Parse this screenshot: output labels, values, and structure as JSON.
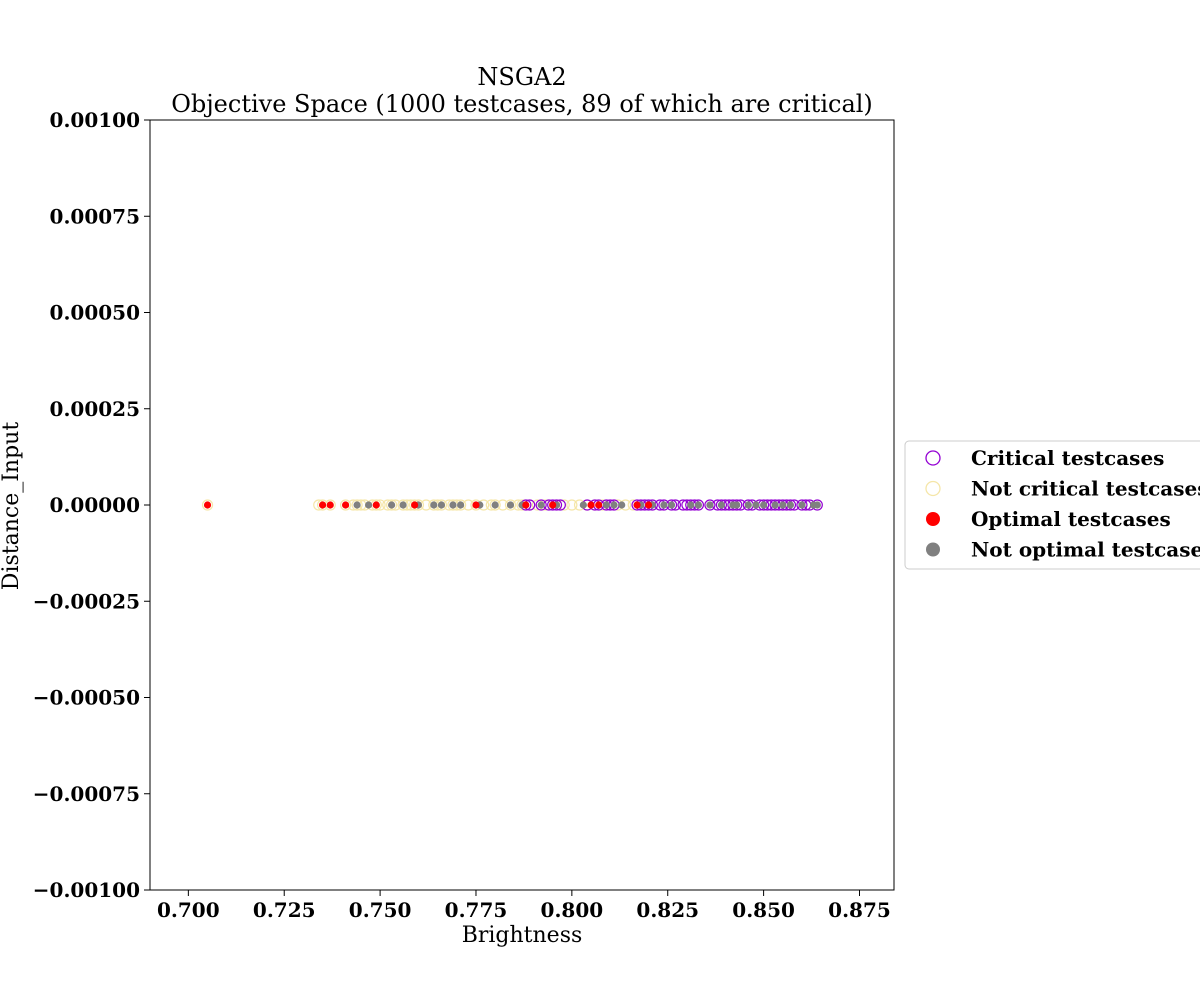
{
  "chart_data": {
    "type": "scatter",
    "title": "NSGA2",
    "subtitle": "Objective Space (1000 testcases, 89 of which are critical)",
    "xlabel": "Brightness",
    "ylabel": "Distance_Input",
    "xlim": [
      0.69,
      0.884
    ],
    "ylim": [
      -0.001,
      0.001
    ],
    "xticks": [
      "0.700",
      "0.725",
      "0.750",
      "0.775",
      "0.800",
      "0.825",
      "0.850",
      "0.875"
    ],
    "yticks": [
      "0.00100",
      "0.00075",
      "0.00050",
      "0.00025",
      "0.00000",
      "−0.00025",
      "−0.00050",
      "−0.00075",
      "−0.00100"
    ],
    "grid": false,
    "legend_position": "right",
    "colors": {
      "critical": "#9400d3",
      "not_critical": "#f5e6a8",
      "optimal": "#ff0000",
      "not_optimal": "#808080"
    },
    "legend": [
      {
        "label": "Critical testcases",
        "marker": "open-circle",
        "color": "#9400d3"
      },
      {
        "label": "Not critical testcases",
        "marker": "open-circle",
        "color": "#f5e6a8"
      },
      {
        "label": "Optimal testcases",
        "marker": "filled-circle",
        "color": "#ff0000"
      },
      {
        "label": "Not optimal testcases",
        "marker": "filled-circle",
        "color": "#808080"
      }
    ],
    "series": [
      {
        "name": "Not critical testcases",
        "x": [
          0.705,
          0.734,
          0.735,
          0.737,
          0.741,
          0.743,
          0.744,
          0.745,
          0.746,
          0.748,
          0.749,
          0.75,
          0.752,
          0.753,
          0.754,
          0.756,
          0.757,
          0.758,
          0.759,
          0.76,
          0.762,
          0.764,
          0.765,
          0.766,
          0.768,
          0.769,
          0.77,
          0.771,
          0.773,
          0.775,
          0.777,
          0.779,
          0.78,
          0.782,
          0.784,
          0.786,
          0.787,
          0.789,
          0.791,
          0.793,
          0.798,
          0.8,
          0.802,
          0.804,
          0.806,
          0.808,
          0.812,
          0.814,
          0.816
        ],
        "y": [
          0,
          0,
          0,
          0,
          0,
          0,
          0,
          0,
          0,
          0,
          0,
          0,
          0,
          0,
          0,
          0,
          0,
          0,
          0,
          0,
          0,
          0,
          0,
          0,
          0,
          0,
          0,
          0,
          0,
          0,
          0,
          0,
          0,
          0,
          0,
          0,
          0,
          0,
          0,
          0,
          0,
          0,
          0,
          0,
          0,
          0,
          0,
          0,
          0
        ]
      },
      {
        "name": "Critical testcases",
        "x": [
          0.788,
          0.789,
          0.792,
          0.794,
          0.795,
          0.796,
          0.797,
          0.804,
          0.806,
          0.807,
          0.809,
          0.81,
          0.811,
          0.817,
          0.818,
          0.819,
          0.82,
          0.821,
          0.823,
          0.824,
          0.826,
          0.827,
          0.829,
          0.83,
          0.831,
          0.832,
          0.833,
          0.836,
          0.838,
          0.839,
          0.84,
          0.841,
          0.842,
          0.843,
          0.844,
          0.846,
          0.847,
          0.849,
          0.85,
          0.851,
          0.852,
          0.853,
          0.854,
          0.855,
          0.856,
          0.857,
          0.858,
          0.86,
          0.861,
          0.862,
          0.864
        ],
        "y": [
          0,
          0,
          0,
          0,
          0,
          0,
          0,
          0,
          0,
          0,
          0,
          0,
          0,
          0,
          0,
          0,
          0,
          0,
          0,
          0,
          0,
          0,
          0,
          0,
          0,
          0,
          0,
          0,
          0,
          0,
          0,
          0,
          0,
          0,
          0,
          0,
          0,
          0,
          0,
          0,
          0,
          0,
          0,
          0,
          0,
          0,
          0,
          0,
          0,
          0,
          0
        ]
      },
      {
        "name": "Not optimal testcases",
        "x": [
          0.744,
          0.747,
          0.753,
          0.756,
          0.76,
          0.764,
          0.766,
          0.769,
          0.771,
          0.776,
          0.78,
          0.784,
          0.787,
          0.792,
          0.796,
          0.803,
          0.809,
          0.811,
          0.813,
          0.818,
          0.821,
          0.824,
          0.826,
          0.831,
          0.833,
          0.836,
          0.839,
          0.842,
          0.843,
          0.846,
          0.848,
          0.85,
          0.853,
          0.855,
          0.857,
          0.86,
          0.863,
          0.864
        ],
        "y": [
          0,
          0,
          0,
          0,
          0,
          0,
          0,
          0,
          0,
          0,
          0,
          0,
          0,
          0,
          0,
          0,
          0,
          0,
          0,
          0,
          0,
          0,
          0,
          0,
          0,
          0,
          0,
          0,
          0,
          0,
          0,
          0,
          0,
          0,
          0,
          0,
          0,
          0
        ]
      },
      {
        "name": "Optimal testcases",
        "x": [
          0.705,
          0.735,
          0.737,
          0.741,
          0.749,
          0.759,
          0.775,
          0.788,
          0.795,
          0.805,
          0.807,
          0.817,
          0.82
        ],
        "y": [
          0,
          0,
          0,
          0,
          0,
          0,
          0,
          0,
          0,
          0,
          0,
          0,
          0
        ]
      }
    ]
  }
}
